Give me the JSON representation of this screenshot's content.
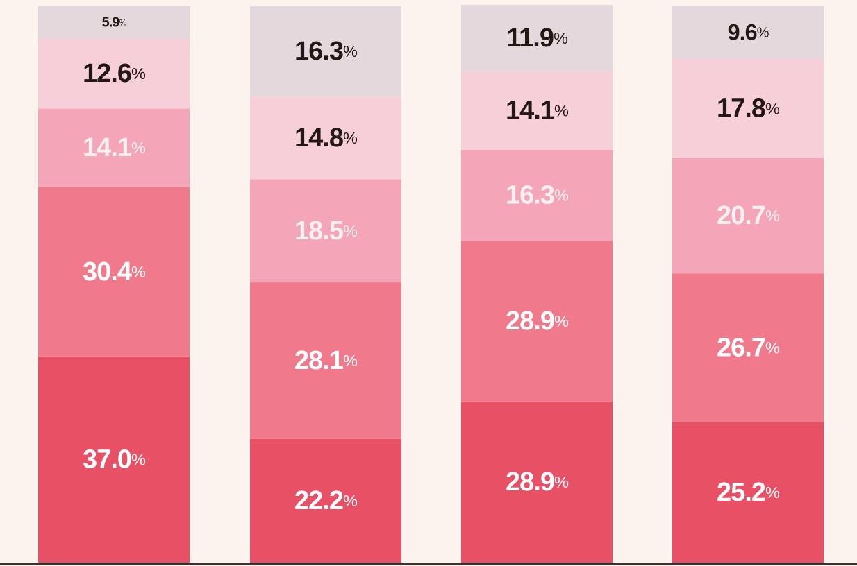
{
  "chart_data": {
    "type": "stacked_bar",
    "ylim": [
      0,
      100
    ],
    "series": [
      {
        "color": "#e85066",
        "label_color": "#ffffff",
        "values": [
          37.0,
          22.2,
          28.9,
          25.2
        ],
        "value_labels": [
          "37.0%",
          "22.2%",
          "28.9%",
          "25.2%"
        ]
      },
      {
        "color": "#f07a8c",
        "label_color": "#ffffff",
        "values": [
          30.4,
          28.1,
          28.9,
          26.7
        ],
        "value_labels": [
          "30.4%",
          "28.1%",
          "28.9%",
          "26.7%"
        ]
      },
      {
        "color": "#f4a5b8",
        "label_color": "#fdf0f3",
        "values": [
          14.1,
          18.5,
          16.3,
          20.7
        ],
        "value_labels": [
          "14.1%",
          "18.5%",
          "16.3%",
          "20.7%"
        ]
      },
      {
        "color": "#f7cfd9",
        "label_color": "#231815",
        "values": [
          12.6,
          14.8,
          14.1,
          17.8
        ],
        "value_labels": [
          "12.6%",
          "14.8%",
          "14.1%",
          "17.8%"
        ]
      },
      {
        "color": "#e5d8dc",
        "label_color": "#231815",
        "values": [
          5.9,
          16.3,
          11.9,
          9.6
        ],
        "value_labels": [
          "5.9%",
          "16.3%",
          "11.9%",
          "9.6%"
        ]
      }
    ]
  }
}
